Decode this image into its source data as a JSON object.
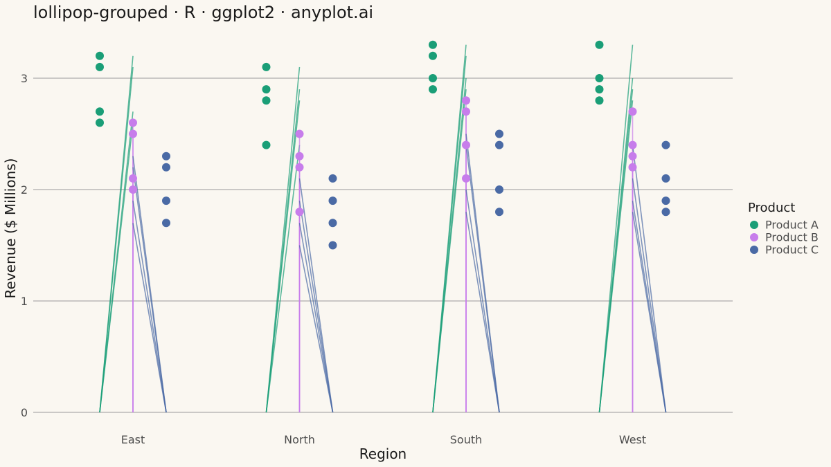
{
  "chart_data": {
    "type": "scatter",
    "title": "lollipop-grouped · R · ggplot2 · anyplot.ai",
    "xlabel": "Region",
    "ylabel": "Revenue ($ Millions)",
    "categories": [
      "East",
      "North",
      "South",
      "West"
    ],
    "ylim": [
      0,
      3.35
    ],
    "yticks": [
      "0",
      "1",
      "2",
      "3"
    ],
    "grid": "horizontal",
    "legend": {
      "title": "Product",
      "placement": "right"
    },
    "series": [
      {
        "name": "Product A",
        "color": "#1A9E77",
        "values": [
          [
            3.2,
            3.1,
            2.7,
            2.6
          ],
          [
            3.1,
            2.9,
            2.8,
            2.4
          ],
          [
            3.3,
            3.2,
            3.0,
            2.9
          ],
          [
            3.3,
            3.0,
            2.9,
            2.8
          ]
        ]
      },
      {
        "name": "Product B",
        "color": "#C77DEB",
        "values": [
          [
            2.6,
            2.5,
            2.1,
            2.0
          ],
          [
            2.5,
            2.3,
            2.2,
            1.8
          ],
          [
            2.8,
            2.7,
            2.4,
            2.1
          ],
          [
            2.7,
            2.4,
            2.3,
            2.2
          ]
        ]
      },
      {
        "name": "Product C",
        "color": "#4A6AA5",
        "values": [
          [
            2.3,
            2.2,
            1.9,
            1.7
          ],
          [
            2.1,
            1.9,
            1.7,
            1.5
          ],
          [
            2.5,
            2.4,
            2.0,
            1.8
          ],
          [
            2.4,
            2.1,
            1.9,
            1.8
          ]
        ]
      }
    ]
  }
}
